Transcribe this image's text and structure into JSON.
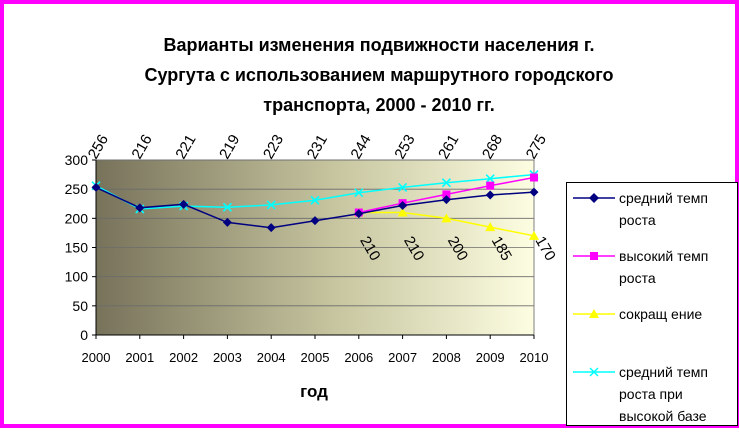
{
  "chart_data": {
    "type": "line",
    "title": "Варианты изменения подвижности населения г.\nСургута с использованием маршрутного городского\nтранспорта, 2000 - 2010 гг.",
    "xlabel": "год",
    "ylabel": "",
    "ylim": [
      0,
      300
    ],
    "yticks": [
      0,
      50,
      100,
      150,
      200,
      250,
      300
    ],
    "x": [
      "2000",
      "2001",
      "2002",
      "2003",
      "2004",
      "2005",
      "2006",
      "2007",
      "2008",
      "2009",
      "2010"
    ],
    "grid": true,
    "legend_position": "right",
    "series": [
      {
        "name": "средний темп роста",
        "color": "#000080",
        "marker": "diamond",
        "values": [
          253,
          218,
          224,
          193,
          184,
          196,
          208,
          222,
          232,
          240,
          245
        ]
      },
      {
        "name": "высокий темп роста",
        "color": "#ff00ff",
        "marker": "square",
        "values": [
          null,
          null,
          null,
          null,
          null,
          null,
          210,
          226,
          241,
          256,
          270
        ]
      },
      {
        "name": "сокращ ение",
        "color": "#ffff00",
        "marker": "triangle",
        "values": [
          null,
          null,
          null,
          null,
          null,
          null,
          210,
          210,
          200,
          185,
          170
        ]
      },
      {
        "name": "средний темп роста при высокой базе",
        "color": "#00ffff",
        "marker": "x",
        "values": [
          256,
          216,
          221,
          219,
          223,
          231,
          244,
          253,
          261,
          268,
          275
        ]
      }
    ],
    "annotations_top": [
      "256",
      "216",
      "221",
      "219",
      "223",
      "231",
      "244",
      "253",
      "261",
      "268",
      "275"
    ],
    "annotations_bottom": [
      "210",
      "210",
      "200",
      "185",
      "170"
    ]
  }
}
